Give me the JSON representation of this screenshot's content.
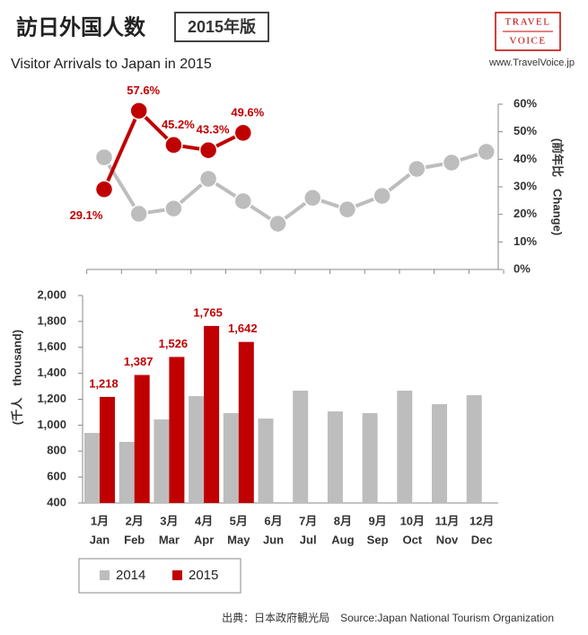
{
  "header": {
    "title": "訪日外国人数",
    "badge": "2015年版",
    "subtitle": "Visitor Arrivals to Japan in 2015",
    "logo_top": "TRAVEL",
    "logo_bottom": "VOICE",
    "url": "www.TravelVoice.jp"
  },
  "source": "出典：日本政府観光局　Source:Japan National Tourism Organization",
  "chart_data": [
    {
      "type": "line",
      "y_label": "(前年比　Change)",
      "y_axis_side": "right",
      "ylim": [
        0,
        60
      ],
      "yticks": [
        {
          "value": 0,
          "label": "0%"
        },
        {
          "value": 10,
          "label": "10%"
        },
        {
          "value": 20,
          "label": "20%"
        },
        {
          "value": 30,
          "label": "30%"
        },
        {
          "value": 40,
          "label": "40%"
        },
        {
          "value": 50,
          "label": "50%"
        },
        {
          "value": 60,
          "label": "60%"
        }
      ],
      "series": [
        {
          "name": "2014",
          "color": "#bdbdbd",
          "values": [
            40.7,
            20.2,
            22.1,
            32.9,
            24.8,
            16.6,
            26,
            21.8,
            26.7,
            36.5,
            38.8,
            42.7
          ]
        },
        {
          "name": "2015",
          "color": "#c00000",
          "values": [
            29.1,
            57.6,
            45.2,
            43.3,
            49.6,
            null,
            null,
            null,
            null,
            null,
            null,
            null
          ],
          "value_labels": [
            "29.1%",
            "57.6%",
            "45.2%",
            "43.3%",
            "49.6%",
            null,
            null,
            null,
            null,
            null,
            null,
            null
          ]
        }
      ]
    },
    {
      "type": "bar",
      "y_label": "(千人　thousand)",
      "y_axis_side": "left",
      "categories": [
        "1月",
        "2月",
        "3月",
        "4月",
        "5月",
        "6月",
        "7月",
        "8月",
        "9月",
        "10月",
        "11月",
        "12月"
      ],
      "categories_en": [
        "Jan",
        "Feb",
        "Mar",
        "Apr",
        "May",
        "Jun",
        "Jul",
        "Aug",
        "Sep",
        "Oct",
        "Nov",
        "Dec"
      ],
      "ylim": [
        400,
        2000
      ],
      "yticks": [
        400,
        600,
        800,
        {
          "value": 1000,
          "label": "1,000"
        },
        {
          "value": 1200,
          "label": "1,200"
        },
        {
          "value": 1400,
          "label": "1,400"
        },
        {
          "value": 1600,
          "label": "1,600"
        },
        {
          "value": 1800,
          "label": "1,800"
        },
        {
          "value": 2000,
          "label": "2,000"
        }
      ],
      "series": [
        {
          "name": "2014",
          "color": "#bdbdbd",
          "values": [
            940,
            871,
            1044,
            1224,
            1093,
            1051,
            1266,
            1106,
            1093,
            1266,
            1162,
            1231
          ]
        },
        {
          "name": "2015",
          "color": "#c00000",
          "values": [
            1218,
            1387,
            1526,
            1765,
            1642,
            null,
            null,
            null,
            null,
            null,
            null,
            null
          ],
          "value_labels": [
            "1,218",
            "1,387",
            "1,526",
            "1,765",
            "1,642",
            null,
            null,
            null,
            null,
            null,
            null,
            null
          ]
        }
      ]
    }
  ]
}
